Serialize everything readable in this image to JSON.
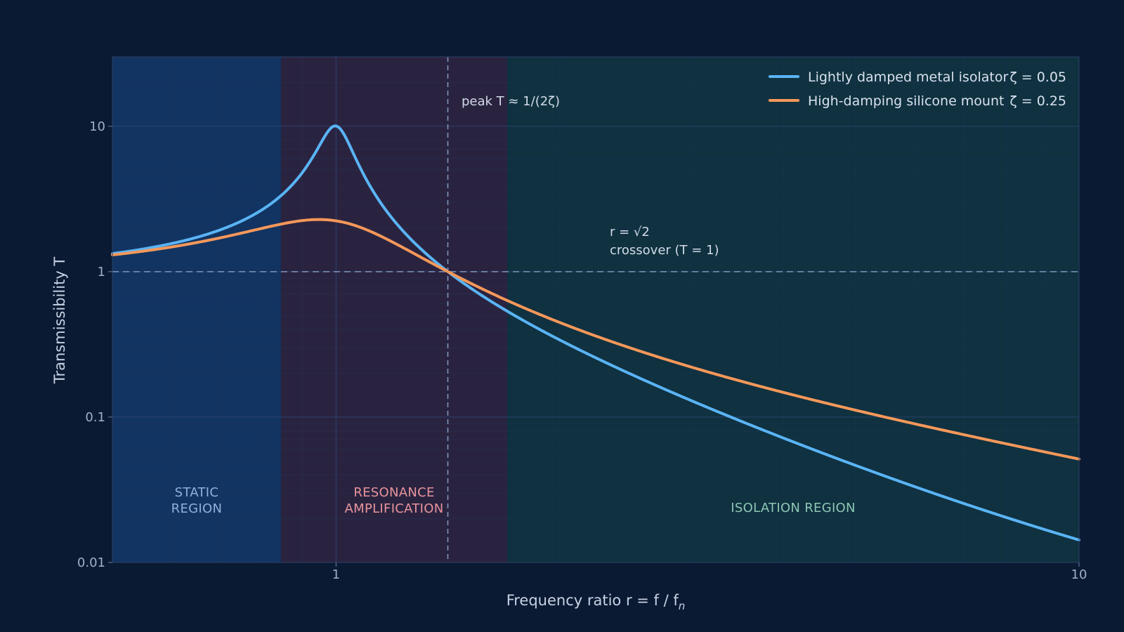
{
  "chart_data": {
    "type": "line",
    "xlabel": "Frequency ratio  r = f / f",
    "xlabel_sub": "n",
    "ylabel": "Transmissibility  T",
    "xscale": "log",
    "yscale": "log",
    "xlim": [
      0.5,
      10
    ],
    "ylim": [
      0.01,
      30
    ],
    "x_ticks": [
      {
        "value": 1,
        "label": "1"
      },
      {
        "value": 10,
        "label": "10"
      }
    ],
    "y_ticks": [
      {
        "value": 0.01,
        "label": "0.01"
      },
      {
        "value": 0.1,
        "label": "0.1"
      },
      {
        "value": 1,
        "label": "1"
      },
      {
        "value": 10,
        "label": "10"
      }
    ],
    "grid": true,
    "legend_position": "top-right",
    "series": [
      {
        "name": "Lightly damped metal isolator",
        "zeta_label": "ζ = 0.05",
        "zeta": 0.05,
        "color": "#5ab4f5",
        "x": [
          0.5,
          0.6,
          0.7,
          0.8,
          0.9,
          0.95,
          1.0,
          1.05,
          1.1,
          1.2,
          1.414,
          1.6,
          2.0,
          3.0,
          5.0,
          7.0,
          10.0
        ],
        "y": [
          1.333,
          1.56,
          1.96,
          2.77,
          5.19,
          8.34,
          10.05,
          8.5,
          4.7,
          2.24,
          1.0,
          0.65,
          0.337,
          0.128,
          0.0433,
          0.0228,
          0.0122
        ]
      },
      {
        "name": "High-damping silicone mount",
        "zeta_label": "ζ = 0.25",
        "zeta": 0.25,
        "color": "#f5985a",
        "x": [
          0.5,
          0.6,
          0.7,
          0.8,
          0.9,
          0.95,
          1.0,
          1.05,
          1.1,
          1.2,
          1.414,
          1.6,
          2.0,
          3.0,
          5.0,
          7.0,
          10.0
        ],
        "y": [
          1.307,
          1.48,
          1.73,
          2.04,
          2.28,
          2.31,
          2.24,
          2.1,
          1.92,
          1.58,
          1.0,
          0.76,
          0.5,
          0.25,
          0.118,
          0.078,
          0.051
        ]
      }
    ],
    "regions": [
      {
        "label_lines": [
          "STATIC",
          "REGION"
        ],
        "x_range": [
          0.5,
          0.843
        ],
        "fill": "#123462",
        "text_color": "#8fb0d8"
      },
      {
        "label_lines": [
          "RESONANCE",
          "AMPLIFICATION"
        ],
        "x_range": [
          0.843,
          1.7
        ],
        "fill": "#2a2340",
        "text_color": "#e8949c"
      },
      {
        "label_lines": [
          "ISOLATION  REGION"
        ],
        "x_range": [
          1.7,
          10
        ],
        "fill": "#0f3140",
        "text_color": "#8ec6b4"
      }
    ],
    "reference_lines": [
      {
        "orientation": "horizontal",
        "value": 1
      },
      {
        "orientation": "vertical",
        "value": 1.414
      }
    ],
    "annotations": {
      "peak": "peak  T  ≈  1/(2ζ)",
      "crossover_line1": "r = √2",
      "crossover_line2": "crossover  (T = 1)"
    }
  }
}
